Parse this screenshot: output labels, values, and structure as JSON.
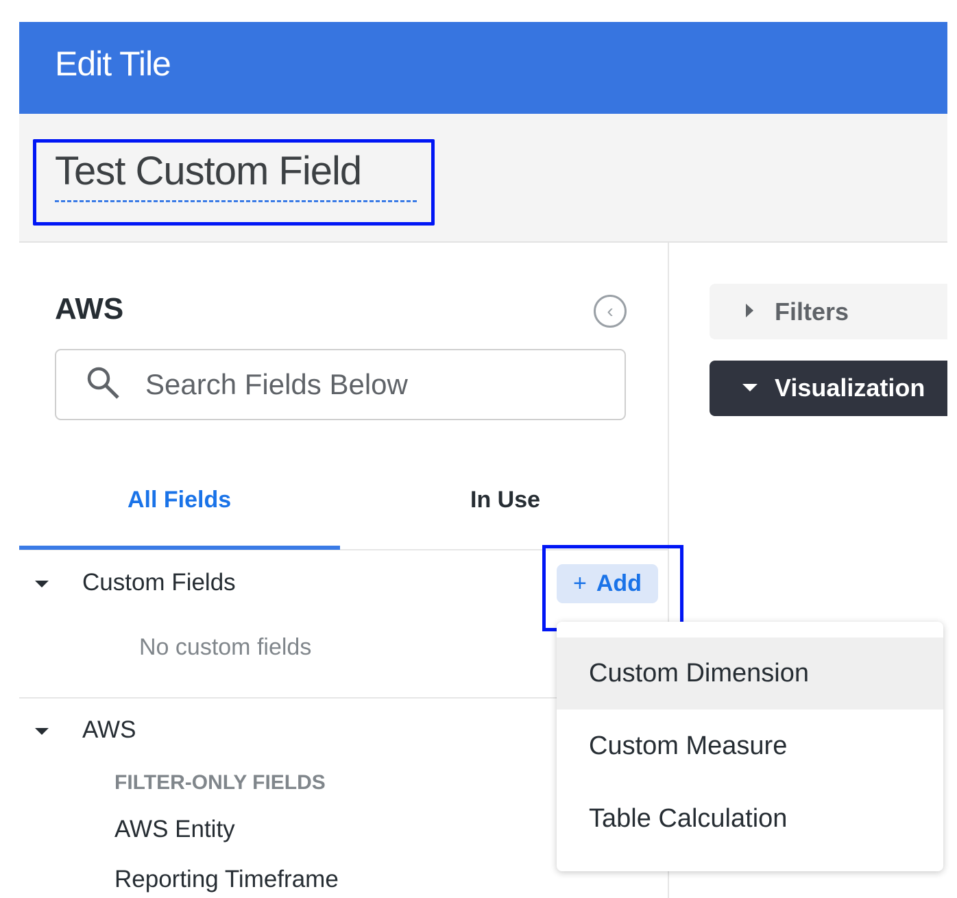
{
  "header": {
    "title": "Edit Tile"
  },
  "tile": {
    "title": "Test Custom Field"
  },
  "panel": {
    "title": "AWS",
    "search_placeholder": "Search Fields Below"
  },
  "tabs": [
    {
      "label": "All Fields",
      "active": true
    },
    {
      "label": "In Use",
      "active": false
    }
  ],
  "custom_fields": {
    "label": "Custom Fields",
    "add_label": "Add",
    "empty": "No custom fields"
  },
  "aws": {
    "label": "AWS",
    "group": "FILTER-ONLY FIELDS",
    "fields": [
      "AWS Entity",
      "Reporting Timeframe"
    ]
  },
  "add_menu": {
    "items": [
      "Custom Dimension",
      "Custom Measure",
      "Table Calculation"
    ],
    "highlighted": 0
  },
  "right": {
    "filters": "Filters",
    "visualization": "Visualization"
  },
  "colors": {
    "header": "#3775E0",
    "accent": "#1a73e8",
    "highlight_box": "#0016F5",
    "viz_bg": "#30343F"
  }
}
